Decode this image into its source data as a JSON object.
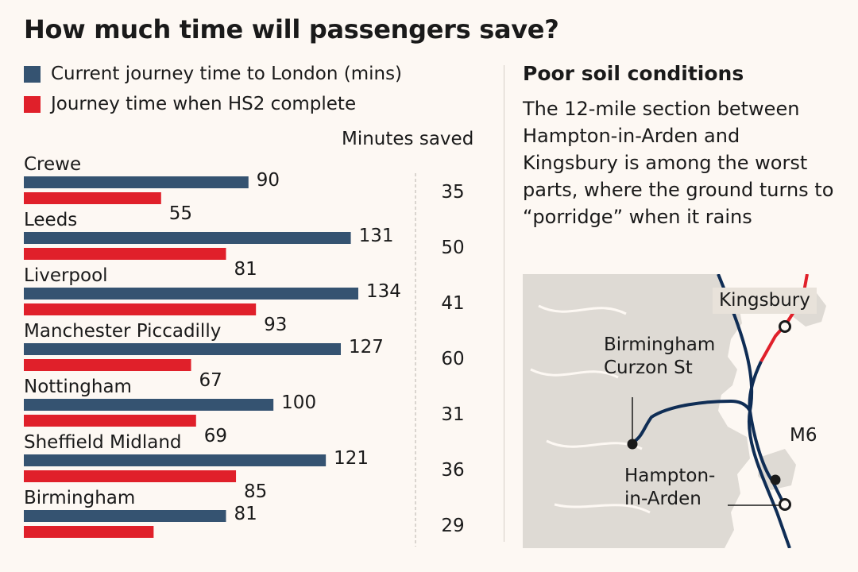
{
  "title": "How much time will passengers save?",
  "legend": [
    {
      "label": "Current journey time to London (mins)",
      "color": "#355371"
    },
    {
      "label": "Journey time when HS2 complete",
      "color": "#e0202a"
    }
  ],
  "saved_header": "Minutes saved",
  "chart_data": {
    "type": "bar",
    "orientation": "horizontal",
    "categories": [
      "Crewe",
      "Leeds",
      "Liverpool",
      "Manchester Piccadilly",
      "Nottingham",
      "Sheffield Midland",
      "Birmingham"
    ],
    "series": [
      {
        "name": "Current journey time to London (mins)",
        "color": "#355371",
        "values": [
          90,
          131,
          134,
          127,
          100,
          121,
          81
        ],
        "labels": [
          "90",
          "131",
          "134",
          "127",
          "100",
          "121",
          "81"
        ]
      },
      {
        "name": "Journey time when HS2 complete",
        "color": "#e0202a",
        "values": [
          55,
          81,
          93,
          67,
          69,
          85,
          52
        ],
        "labels": [
          "55",
          "81",
          "93",
          "67",
          "69",
          "85",
          ""
        ]
      }
    ],
    "minutes_saved": [
      "35",
      "50",
      "41",
      "60",
      "31",
      "36",
      "29"
    ],
    "xlim": [
      0,
      150
    ]
  },
  "side": {
    "heading": "Poor soil conditions",
    "text": "The 12-mile section between Hampton-in-Arden and Kingsbury is among the worst parts, where the ground turns to “porridge” when it rains"
  },
  "map": {
    "labels": {
      "kingsbury": "Kingsbury",
      "curzon": "Birmingham\nCurzon St",
      "m6": "M6",
      "hampton": "Hampton-\nin-Arden"
    },
    "colors": {
      "urban": "#dedad4",
      "rail": "#0f2d55",
      "route": "#e0202a"
    }
  }
}
